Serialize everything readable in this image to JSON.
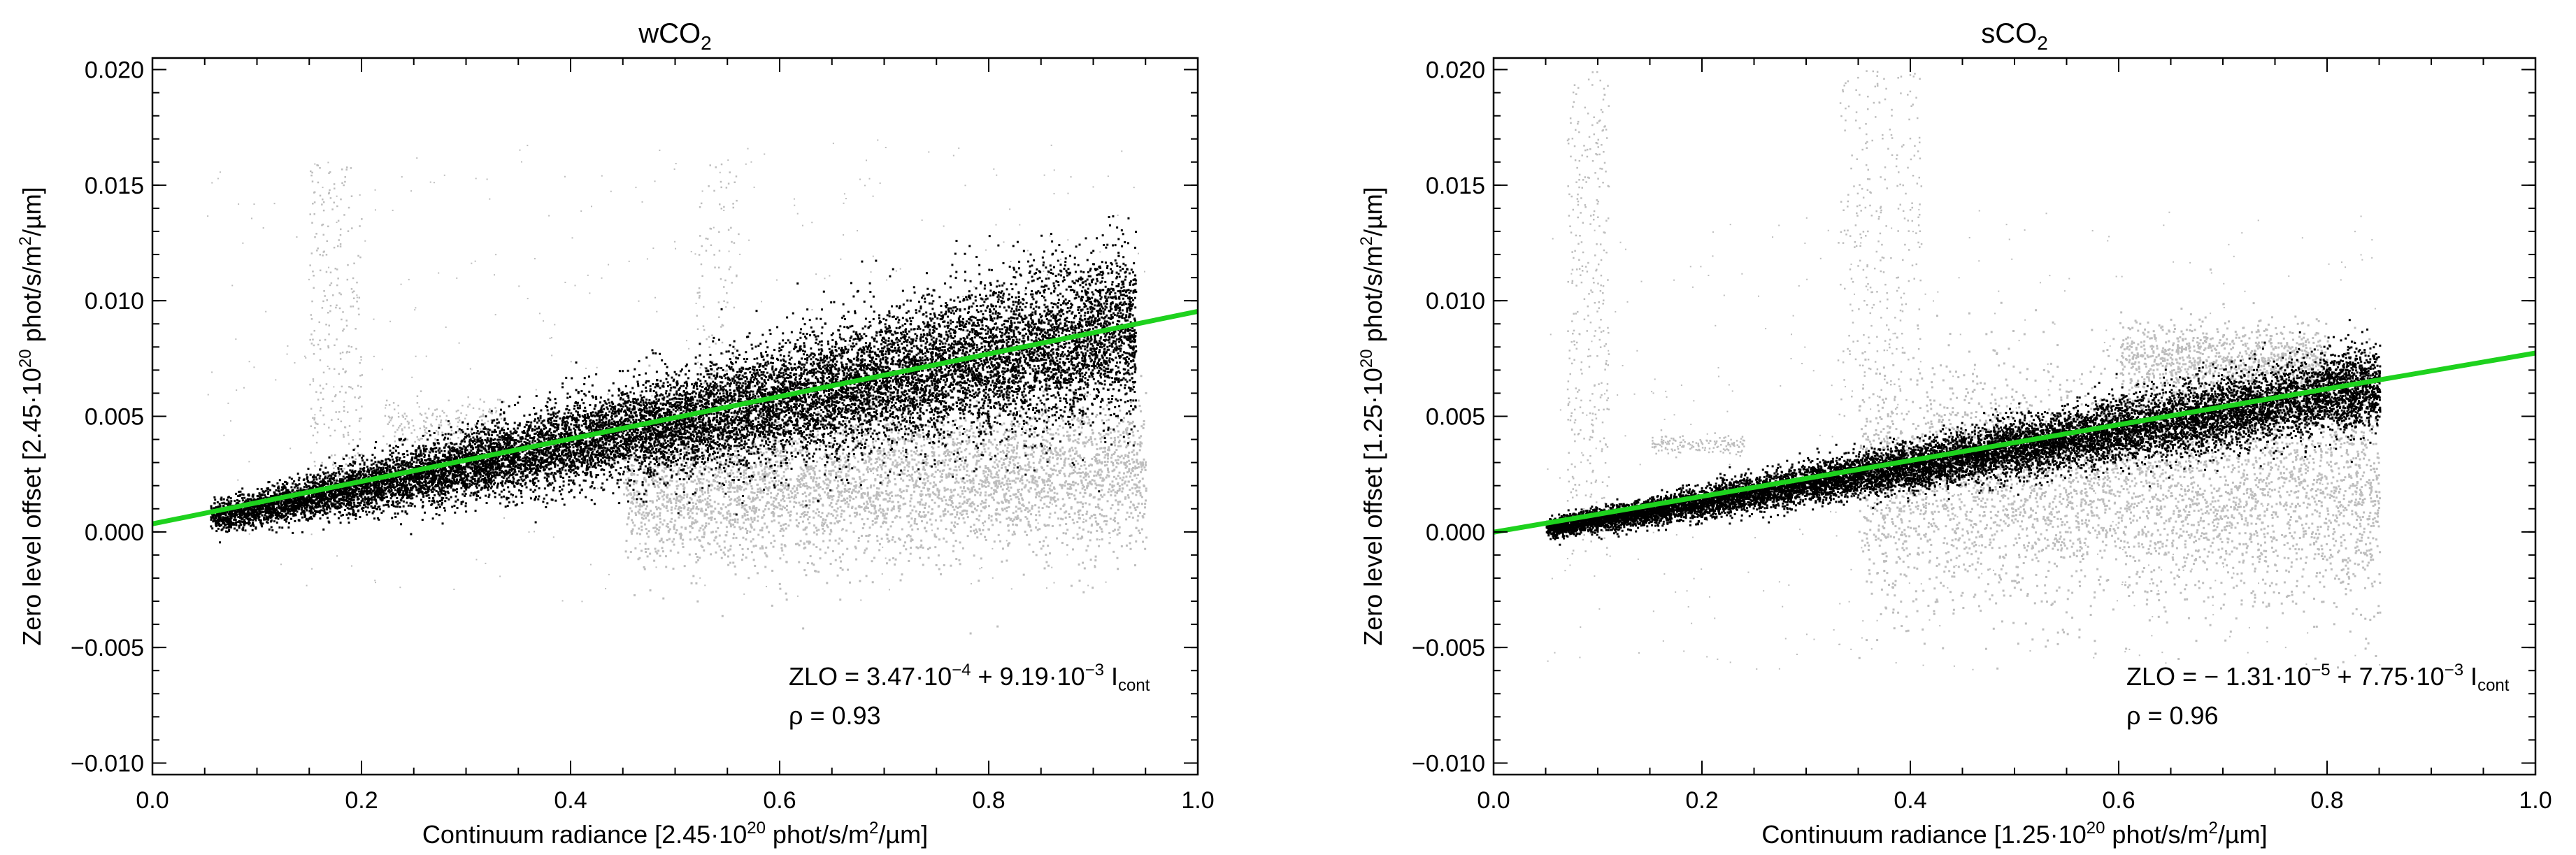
{
  "chart_data": [
    {
      "type": "scatter",
      "title": "wCO",
      "title_sub": "2",
      "xlabel": "Continuum radiance [2.45·10",
      "xlabel_sup": "20",
      "xlabel_tail": " phot/s/m",
      "xlabel_sup2": "2",
      "xlabel_end": "/µm]",
      "ylabel": "Zero level offset [2.45·10",
      "ylabel_sup": "20",
      "ylabel_tail": " phot/s/m",
      "ylabel_sup2": "2",
      "ylabel_end": "/µm]",
      "xlim": [
        0.0,
        1.0
      ],
      "ylim": [
        -0.0105,
        0.0205
      ],
      "xticks": [
        0.0,
        0.2,
        0.4,
        0.6,
        0.8,
        1.0
      ],
      "xtick_labels": [
        "0.0",
        "0.2",
        "0.4",
        "0.6",
        "0.8",
        "1.0"
      ],
      "yticks": [
        -0.01,
        -0.005,
        0.0,
        0.005,
        0.01,
        0.015,
        0.02
      ],
      "ytick_labels": [
        "−0.010",
        "−0.005",
        "0.000",
        "0.005",
        "0.010",
        "0.015",
        "0.020"
      ],
      "fit": {
        "intercept": 0.000347,
        "slope": 0.00919,
        "color": "#1ed21e"
      },
      "fit_label_prefix": "ZLO = 3.47·10",
      "fit_label_exp1": "−4",
      "fit_label_mid": " + 9.19·10",
      "fit_label_exp2": "−3",
      "fit_label_var": " I",
      "fit_label_var_sub": "cont",
      "rho_label": "ρ = 0.93",
      "series": [
        {
          "name": "selected",
          "color": "#000000",
          "x_range": [
            0.05,
            0.94
          ],
          "description_points": [
            [
              0.05,
              0.0007
            ],
            [
              0.2,
              0.0021
            ],
            [
              0.4,
              0.004
            ],
            [
              0.6,
              0.0058
            ],
            [
              0.8,
              0.0077
            ],
            [
              0.94,
              0.009
            ]
          ]
        },
        {
          "name": "rejected",
          "color": "#bdbdbd",
          "x_range": [
            0.05,
            0.94
          ],
          "description_points": [
            [
              0.18,
              0.011
            ],
            [
              0.27,
              0.005
            ],
            [
              0.55,
              0.0015
            ],
            [
              0.7,
              0.002
            ],
            [
              0.85,
              0.003
            ]
          ]
        }
      ]
    },
    {
      "type": "scatter",
      "title": "sCO",
      "title_sub": "2",
      "xlabel": "Continuum radiance [1.25·10",
      "xlabel_sup": "20",
      "xlabel_tail": " phot/s/m",
      "xlabel_sup2": "2",
      "xlabel_end": "/µm]",
      "ylabel": "Zero level offset [1.25·10",
      "ylabel_sup": "20",
      "ylabel_tail": " phot/s/m",
      "ylabel_sup2": "2",
      "ylabel_end": "/µm]",
      "xlim": [
        0.0,
        1.0
      ],
      "ylim": [
        -0.0105,
        0.0205
      ],
      "xticks": [
        0.0,
        0.2,
        0.4,
        0.6,
        0.8,
        1.0
      ],
      "xtick_labels": [
        "0.0",
        "0.2",
        "0.4",
        "0.6",
        "0.8",
        "1.0"
      ],
      "yticks": [
        -0.01,
        -0.005,
        0.0,
        0.005,
        0.01,
        0.015,
        0.02
      ],
      "ytick_labels": [
        "−0.010",
        "−0.005",
        "0.000",
        "0.005",
        "0.010",
        "0.015",
        "0.020"
      ],
      "fit": {
        "intercept": -1.31e-05,
        "slope": 0.00775,
        "color": "#1ed21e"
      },
      "fit_label_prefix": "ZLO = − 1.31·10",
      "fit_label_exp1": "−5",
      "fit_label_mid": " + 7.75·10",
      "fit_label_exp2": "−3",
      "fit_label_var": " I",
      "fit_label_var_sub": "cont",
      "rho_label": "ρ = 0.96",
      "series": [
        {
          "name": "selected",
          "color": "#000000",
          "x_range": [
            0.05,
            0.85
          ],
          "description_points": [
            [
              0.05,
              0.0003
            ],
            [
              0.2,
              0.0015
            ],
            [
              0.4,
              0.003
            ],
            [
              0.6,
              0.0046
            ],
            [
              0.8,
              0.0062
            ]
          ]
        },
        {
          "name": "rejected",
          "color": "#bdbdbd",
          "x_range": [
            0.02,
            0.85
          ],
          "description_points": [
            [
              0.08,
              0.01
            ],
            [
              0.35,
              0.015
            ],
            [
              0.55,
              0.001
            ],
            [
              0.7,
              0.008
            ],
            [
              0.65,
              -0.004
            ]
          ]
        }
      ]
    }
  ]
}
